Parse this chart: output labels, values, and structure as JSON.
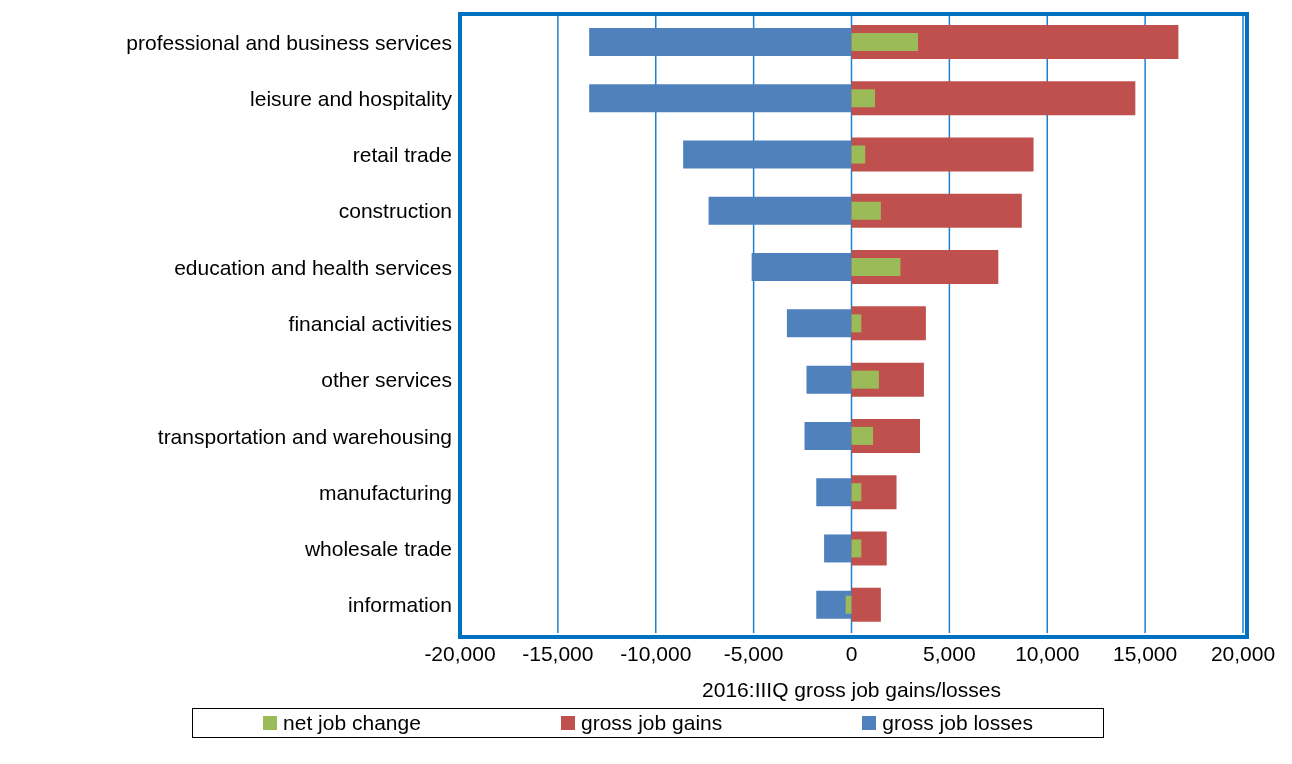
{
  "chart_data": {
    "type": "bar",
    "orientation": "horizontal",
    "xlabel": "2016:IIIQ  gross job gains/losses",
    "categories": [
      "professional and business services",
      "leisure and hospitality",
      "retail trade",
      "construction",
      "education and health services",
      "financial activities",
      "other services",
      "transportation and warehousing",
      "manufacturing",
      "wholesale trade",
      "information"
    ],
    "series": [
      {
        "name": "net job change",
        "color": "#9bbb59",
        "values": [
          3400,
          1200,
          700,
          1500,
          2500,
          500,
          1400,
          1100,
          500,
          500,
          -300
        ]
      },
      {
        "name": "gross job gains",
        "color": "#c0504d",
        "values": [
          16700,
          14500,
          9300,
          8700,
          7500,
          3800,
          3700,
          3500,
          2300,
          1800,
          1500
        ]
      },
      {
        "name": "gross job losses",
        "color": "#4f81bd",
        "values": [
          -13400,
          -13400,
          -8600,
          -7300,
          -5100,
          -3300,
          -2300,
          -2400,
          -1800,
          -1400,
          -1800
        ]
      }
    ],
    "xlim": [
      -20000,
      20000
    ],
    "xticks": [
      {
        "value": -20000,
        "label": "-20,000"
      },
      {
        "value": -15000,
        "label": "-15,000"
      },
      {
        "value": -10000,
        "label": "-10,000"
      },
      {
        "value": -5000,
        "label": "-5,000"
      },
      {
        "value": 0,
        "label": "0"
      },
      {
        "value": 5000,
        "label": "5,000"
      },
      {
        "value": 10000,
        "label": "10,000"
      },
      {
        "value": 15000,
        "label": "15,000"
      },
      {
        "value": 20000,
        "label": "20,000"
      }
    ],
    "grid": "x",
    "legend": "bottom"
  }
}
